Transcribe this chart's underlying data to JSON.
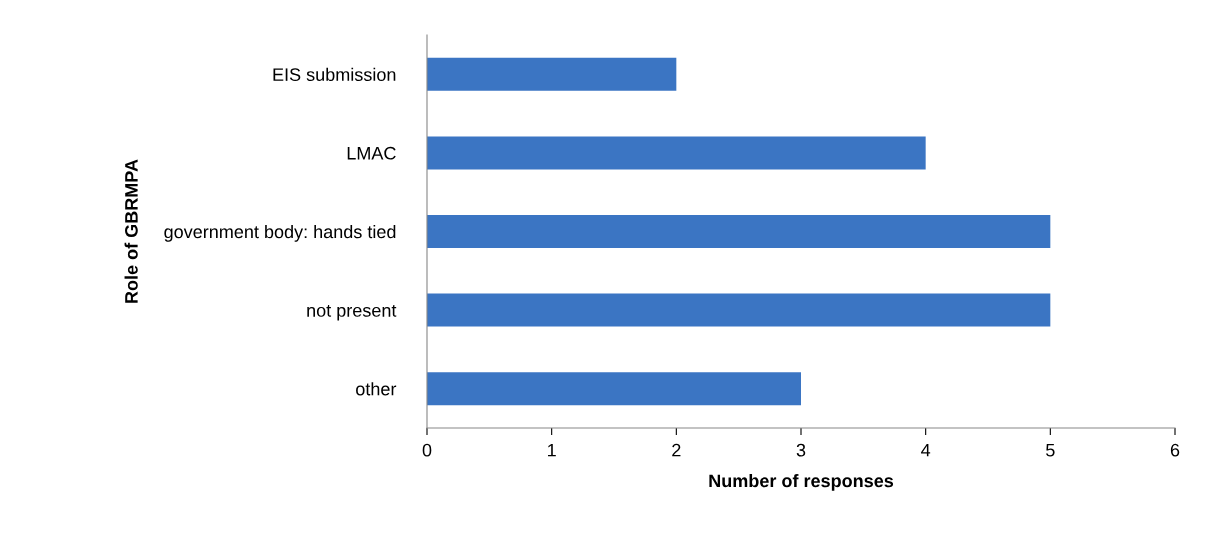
{
  "chart_data": {
    "type": "bar",
    "orientation": "horizontal",
    "xlabel": "Number of responses",
    "ylabel": "Role of GBRMPA",
    "categories": [
      "EIS submission",
      "LMAC",
      "government body: hands tied",
      "not present",
      "other"
    ],
    "values": [
      2,
      4,
      5,
      5,
      3
    ],
    "color": "#3b75c3",
    "xlim": [
      0,
      6
    ],
    "xticks": [
      0,
      1,
      2,
      3,
      4,
      5,
      6
    ],
    "grid": false,
    "legend": false
  }
}
